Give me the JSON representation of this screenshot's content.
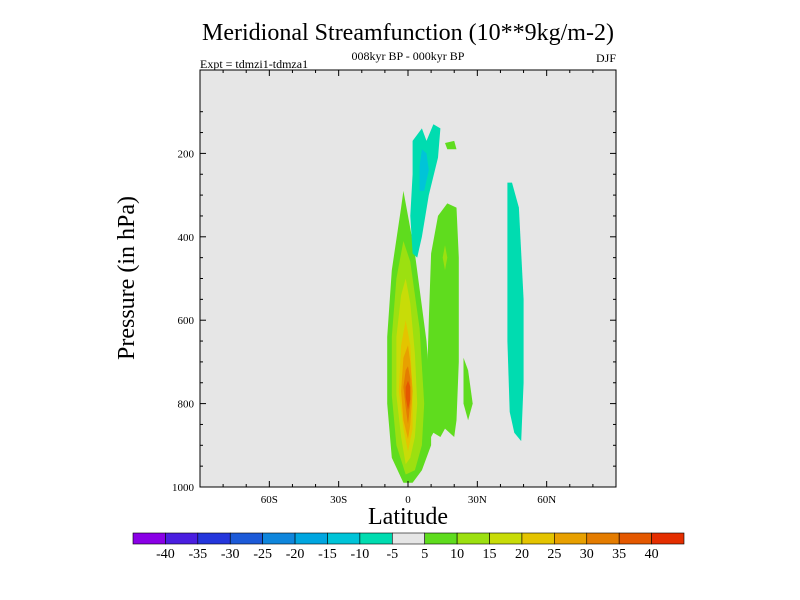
{
  "chart_data": {
    "type": "contour",
    "title": "Meridional Streamfunction (10**9kg/m-2)",
    "subtitle_left": "Expt = tdmzi1-tdmza1",
    "subtitle_center": "008kyr BP - 000kyr BP",
    "subtitle_right": "DJF",
    "xlabel": "Latitude",
    "ylabel": "Pressure (in hPa)",
    "xlim": [
      -90,
      90
    ],
    "ylim": [
      0,
      1000
    ],
    "y_inverted": true,
    "x_ticks": [
      {
        "value": -60,
        "label": "60S"
      },
      {
        "value": -30,
        "label": "30S"
      },
      {
        "value": 0,
        "label": "0"
      },
      {
        "value": 30,
        "label": "30N"
      },
      {
        "value": 60,
        "label": "60N"
      }
    ],
    "y_ticks": [
      {
        "value": 200,
        "label": "200"
      },
      {
        "value": 400,
        "label": "400"
      },
      {
        "value": 600,
        "label": "600"
      },
      {
        "value": 800,
        "label": "800"
      },
      {
        "value": 1000,
        "label": "1000"
      }
    ],
    "colorbar": {
      "labels": [
        "-40",
        "-35",
        "-30",
        "-25",
        "-20",
        "-15",
        "-10",
        "-5",
        "5",
        "10",
        "15",
        "20",
        "25",
        "30",
        "35",
        "40"
      ],
      "colors": [
        "#8a00e6",
        "#4a1ee0",
        "#2436dc",
        "#1c5ad8",
        "#0f86dc",
        "#00a6e0",
        "#00c4d8",
        "#00dcb0",
        "#e6e6e6",
        "#5fdc1e",
        "#9ce010",
        "#c8dc08",
        "#e4c400",
        "#e8a000",
        "#e47c00",
        "#e45800",
        "#e42e00"
      ]
    },
    "features": [
      {
        "name": "positive-cell",
        "level": 5,
        "color": "#5fdc1e",
        "points": [
          [
            -2,
            990
          ],
          [
            -7,
            930
          ],
          [
            -9,
            800
          ],
          [
            -9,
            640
          ],
          [
            -7,
            480
          ],
          [
            -3,
            330
          ],
          [
            -2,
            290
          ],
          [
            0,
            350
          ],
          [
            3,
            440
          ],
          [
            8,
            650
          ],
          [
            10,
            800
          ],
          [
            10,
            900
          ],
          [
            6,
            960
          ],
          [
            2,
            990
          ]
        ]
      },
      {
        "name": "positive-cell",
        "level": 10,
        "color": "#9ce010",
        "points": [
          [
            -1,
            970
          ],
          [
            -5,
            900
          ],
          [
            -7,
            780
          ],
          [
            -7,
            640
          ],
          [
            -5,
            500
          ],
          [
            -2,
            410
          ],
          [
            1,
            460
          ],
          [
            5,
            620
          ],
          [
            7,
            800
          ],
          [
            6,
            900
          ],
          [
            3,
            960
          ]
        ]
      },
      {
        "name": "positive-cell",
        "level": 15,
        "color": "#c8dc08",
        "points": [
          [
            -1,
            945
          ],
          [
            -3,
            880
          ],
          [
            -5,
            780
          ],
          [
            -5,
            640
          ],
          [
            -3,
            540
          ],
          [
            -1,
            500
          ],
          [
            1,
            560
          ],
          [
            3,
            680
          ],
          [
            4,
            800
          ],
          [
            3,
            880
          ],
          [
            1,
            930
          ]
        ]
      },
      {
        "name": "positive-cell",
        "level": 20,
        "color": "#e4c400",
        "points": [
          [
            0,
            915
          ],
          [
            -2,
            860
          ],
          [
            -4,
            770
          ],
          [
            -3,
            660
          ],
          [
            -1,
            600
          ],
          [
            1,
            660
          ],
          [
            2,
            770
          ],
          [
            2,
            860
          ]
        ]
      },
      {
        "name": "positive-cell",
        "level": 25,
        "color": "#e8a000",
        "points": [
          [
            0,
            885
          ],
          [
            -2,
            840
          ],
          [
            -3,
            770
          ],
          [
            -2,
            690
          ],
          [
            0,
            660
          ],
          [
            1,
            700
          ],
          [
            2,
            770
          ],
          [
            1,
            850
          ]
        ]
      },
      {
        "name": "positive-cell",
        "level": 30,
        "color": "#e47c00",
        "points": [
          [
            0,
            850
          ],
          [
            -1,
            810
          ],
          [
            -2,
            760
          ],
          [
            -1,
            720
          ],
          [
            0,
            710
          ],
          [
            1,
            740
          ],
          [
            1,
            800
          ]
        ]
      },
      {
        "name": "positive-cell",
        "level": 35,
        "color": "#e45800",
        "points": [
          [
            0,
            815
          ],
          [
            -1,
            785
          ],
          [
            -1,
            760
          ],
          [
            0,
            745
          ],
          [
            1,
            760
          ],
          [
            1,
            790
          ]
        ]
      },
      {
        "name": "positive-cell",
        "level": 5,
        "color": "#5fdc1e",
        "points": [
          [
            9,
            890
          ],
          [
            8,
            780
          ],
          [
            9,
            600
          ],
          [
            10,
            440
          ],
          [
            13,
            350
          ],
          [
            17,
            320
          ],
          [
            21,
            330
          ],
          [
            22,
            450
          ],
          [
            22,
            580
          ],
          [
            22,
            700
          ],
          [
            21,
            840
          ],
          [
            20,
            880
          ],
          [
            16,
            860
          ],
          [
            14,
            880
          ],
          [
            11,
            870
          ]
        ]
      },
      {
        "name": "positive-cell",
        "level": 5,
        "color": "#5fdc1e",
        "points": [
          [
            24,
            690
          ],
          [
            26,
            720
          ],
          [
            28,
            800
          ],
          [
            26,
            840
          ],
          [
            24,
            800
          ]
        ]
      },
      {
        "name": "positive-cell",
        "level": 5,
        "color": "#5fdc1e",
        "points": [
          [
            20,
            170
          ],
          [
            21,
            190
          ],
          [
            17,
            190
          ],
          [
            16,
            175
          ]
        ]
      },
      {
        "name": "positive-cell",
        "level": 10,
        "color": "#9ce010",
        "points": [
          [
            16,
            420
          ],
          [
            17,
            450
          ],
          [
            16,
            480
          ],
          [
            15,
            450
          ]
        ]
      },
      {
        "name": "negative-cell",
        "level": -5,
        "color": "#00dcb0",
        "points": [
          [
            2,
            440
          ],
          [
            1,
            350
          ],
          [
            2,
            250
          ],
          [
            2,
            170
          ],
          [
            6,
            140
          ],
          [
            8,
            170
          ],
          [
            11,
            130
          ],
          [
            14,
            140
          ],
          [
            13,
            210
          ],
          [
            9,
            300
          ],
          [
            6,
            400
          ],
          [
            4,
            450
          ]
        ]
      },
      {
        "name": "negative-cell",
        "level": -10,
        "color": "#00c4d8",
        "points": [
          [
            5,
            290
          ],
          [
            5,
            230
          ],
          [
            6,
            190
          ],
          [
            8,
            200
          ],
          [
            9,
            240
          ],
          [
            7,
            290
          ]
        ]
      },
      {
        "name": "negative-cell",
        "level": -5,
        "color": "#00dcb0",
        "points": [
          [
            43,
            400
          ],
          [
            43,
            270
          ],
          [
            45,
            270
          ],
          [
            48,
            330
          ],
          [
            50,
            550
          ],
          [
            50,
            750
          ],
          [
            49,
            890
          ],
          [
            46,
            870
          ],
          [
            44,
            820
          ],
          [
            43,
            650
          ]
        ]
      }
    ]
  }
}
